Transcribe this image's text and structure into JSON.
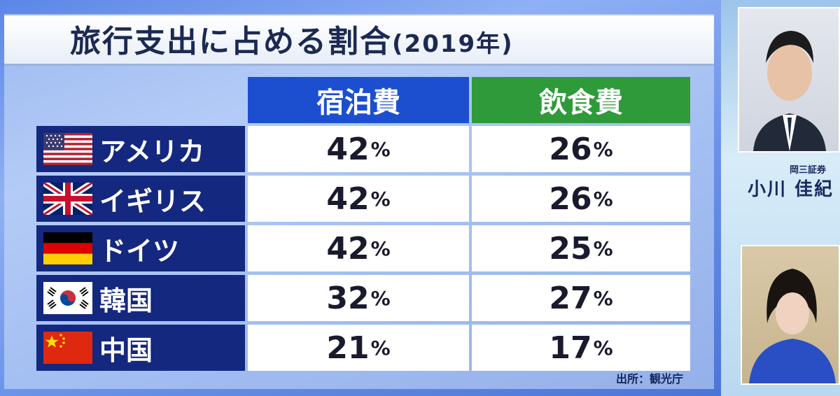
{
  "title": {
    "main": "旅行支出に占める割合",
    "year": "(2019年)"
  },
  "columns": {
    "lodging": "宿泊費",
    "food": "飲食費"
  },
  "rows": [
    {
      "country": "アメリカ",
      "flag": "usa-flag-icon",
      "lodging": "42",
      "food": "26"
    },
    {
      "country": "イギリス",
      "flag": "uk-flag-icon",
      "lodging": "42",
      "food": "26"
    },
    {
      "country": "ドイツ",
      "flag": "germany-flag-icon",
      "lodging": "42",
      "food": "25"
    },
    {
      "country": "韓国",
      "flag": "korea-flag-icon",
      "lodging": "32",
      "food": "27"
    },
    {
      "country": "中国",
      "flag": "china-flag-icon",
      "lodging": "21",
      "food": "17"
    }
  ],
  "percent_sign": "%",
  "source": "出所：観光庁",
  "presenter": {
    "org": "岡三証券",
    "name": "小川 佳紀"
  },
  "colors": {
    "lodging_header": "#1c4fd0",
    "food_header": "#2f9a3a",
    "row_label_bg": "#13287e",
    "title_text": "#1c2a52"
  }
}
